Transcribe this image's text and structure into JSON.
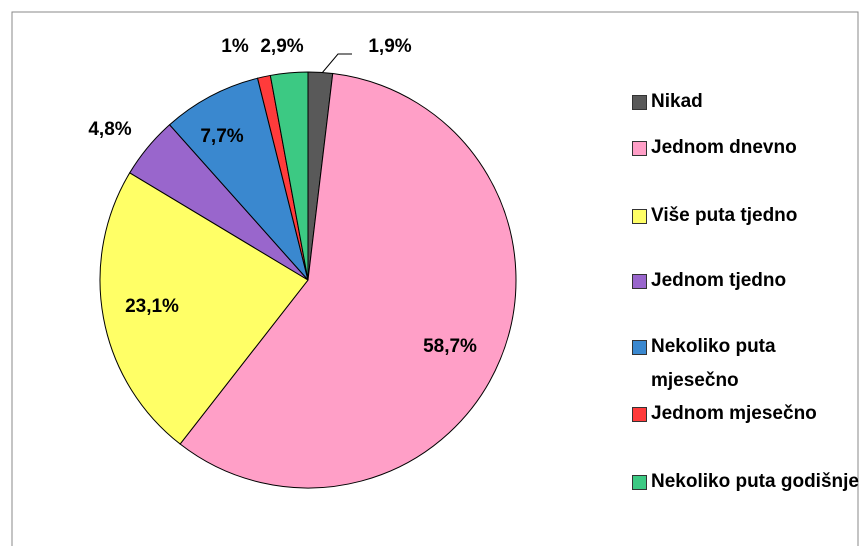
{
  "chart_data": {
    "type": "pie",
    "categories": [
      "Nikad",
      "Jednom dnevno",
      "Više puta tjedno",
      "Jednom tjedno",
      "Nekoliko puta mjesečno",
      "Jednom mjesečno",
      "Nekoliko puta godišnje"
    ],
    "values": [
      1.9,
      58.7,
      23.1,
      4.8,
      7.7,
      1,
      2.9
    ],
    "value_labels": [
      "1,9%",
      "58,7%",
      "23,1%",
      "4,8%",
      "7,7%",
      "1%",
      "2,9%"
    ],
    "colors": [
      "#595959",
      "#ff9fc7",
      "#ffff66",
      "#9966cc",
      "#3a88cf",
      "#ff3b3b",
      "#3cc983"
    ],
    "legend": "right"
  }
}
